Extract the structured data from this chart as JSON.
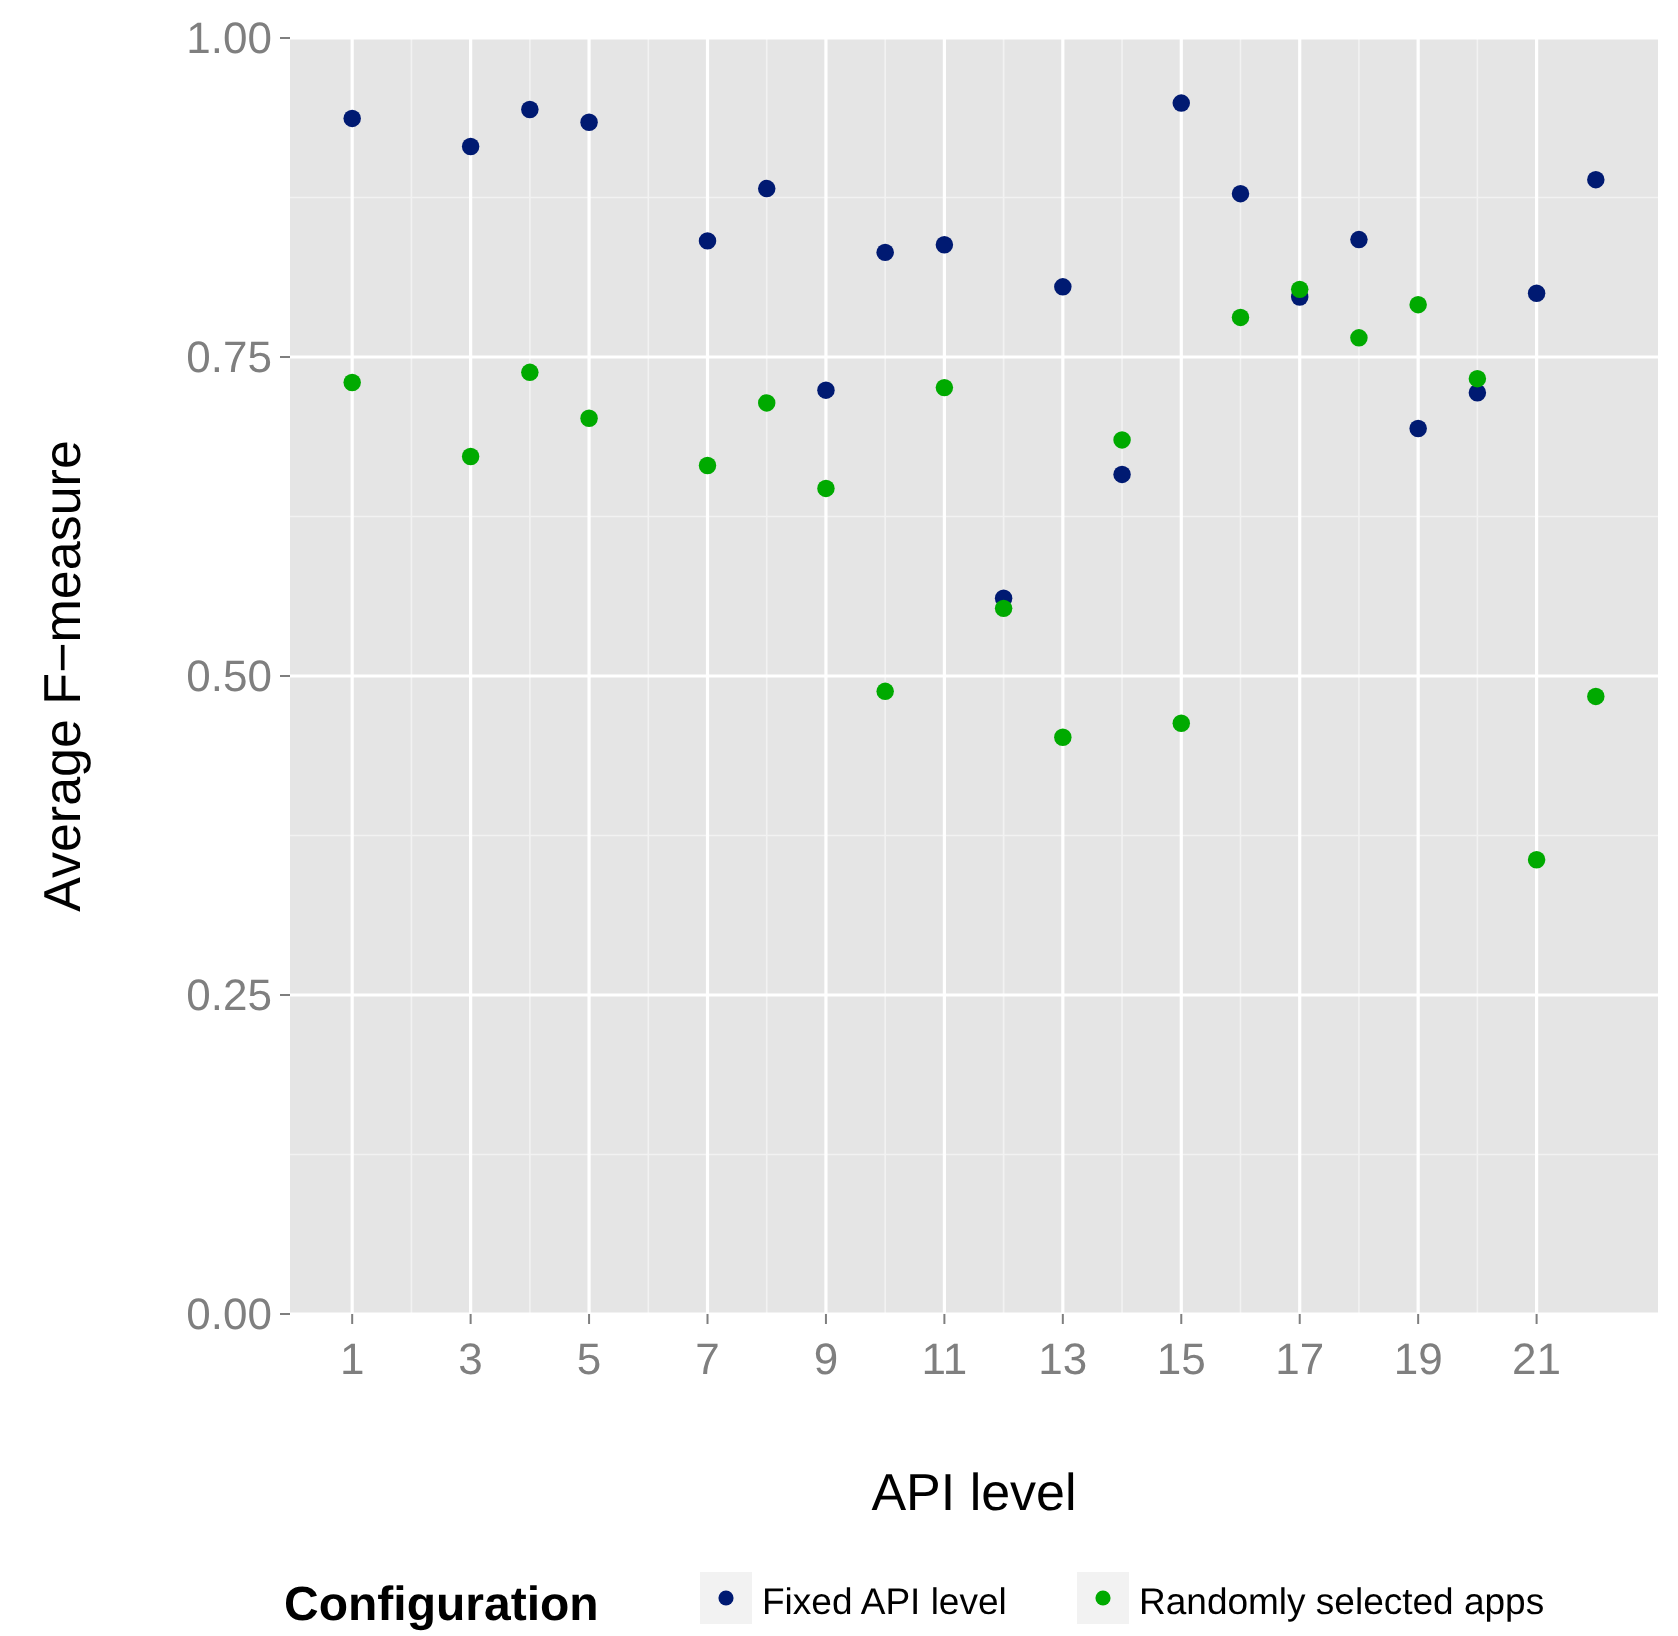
{
  "chart_data": {
    "type": "scatter",
    "xlabel": "API level",
    "ylabel": "Average F−measure",
    "legend_title": "Configuration",
    "legend": "bottom",
    "grid": true,
    "marker": "circle",
    "xlim": [
      -0.05,
      23.05
    ],
    "xticks": [
      1,
      3,
      5,
      7,
      9,
      11,
      13,
      15,
      17,
      19,
      21
    ],
    "ylim": [
      0,
      1
    ],
    "yticks": [
      {
        "value": 0,
        "label": "0.00"
      },
      {
        "value": 0.25,
        "label": "0.25"
      },
      {
        "value": 0.5,
        "label": "0.50"
      },
      {
        "value": 0.75,
        "label": "0.75"
      },
      {
        "value": 1,
        "label": "1.00"
      }
    ],
    "series": [
      {
        "name": "Fixed API level",
        "color": "#001a72",
        "x": [
          1,
          3,
          4,
          5,
          7,
          8,
          9,
          10,
          11,
          12,
          13,
          14,
          15,
          16,
          17,
          18,
          19,
          20,
          21,
          22
        ],
        "values": [
          0.937,
          0.915,
          0.944,
          0.934,
          0.841,
          0.882,
          0.724,
          0.832,
          0.838,
          0.561,
          0.805,
          0.658,
          0.949,
          0.878,
          0.797,
          0.842,
          0.694,
          0.722,
          0.8,
          0.889
        ]
      },
      {
        "name": "Randomly selected apps",
        "color": "#00aa00",
        "x": [
          1,
          3,
          4,
          5,
          7,
          8,
          9,
          10,
          11,
          12,
          13,
          14,
          15,
          16,
          17,
          18,
          19,
          20,
          21,
          22
        ],
        "values": [
          0.73,
          0.672,
          0.738,
          0.702,
          0.665,
          0.714,
          0.647,
          0.488,
          0.726,
          0.553,
          0.452,
          0.685,
          0.463,
          0.781,
          0.803,
          0.765,
          0.791,
          0.733,
          0.356,
          0.484
        ]
      }
    ]
  }
}
